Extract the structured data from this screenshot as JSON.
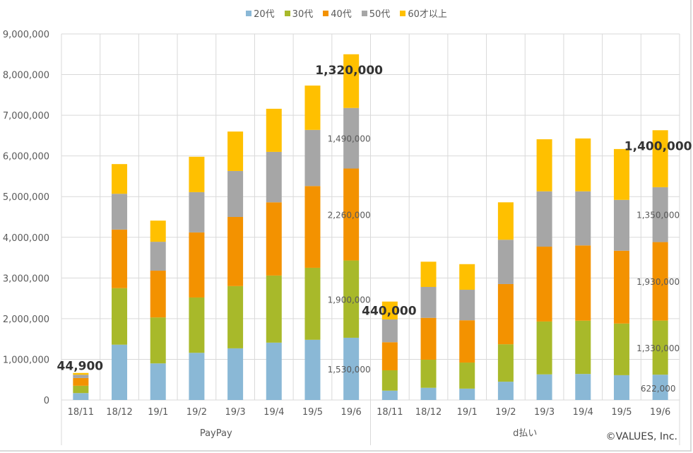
{
  "chart_data": {
    "type": "bar",
    "stacked": true,
    "title": "",
    "xlabel": "",
    "ylabel": "",
    "ylim": [
      0,
      9000000
    ],
    "yticks": [
      0,
      1000000,
      2000000,
      3000000,
      4000000,
      5000000,
      6000000,
      7000000,
      8000000,
      9000000
    ],
    "ytick_labels": [
      "0",
      "1,000,000",
      "2,000,000",
      "3,000,000",
      "4,000,000",
      "5,000,000",
      "6,000,000",
      "7,000,000",
      "8,000,000",
      "9,000,000"
    ],
    "grid": true,
    "legend_position": "top",
    "groups": [
      {
        "name": "PayPay",
        "categories": [
          "18/11",
          "18/12",
          "19/1",
          "19/2",
          "19/3",
          "19/4",
          "19/5",
          "19/6"
        ]
      },
      {
        "name": "d払い",
        "categories": [
          "18/11",
          "18/12",
          "19/1",
          "19/2",
          "19/3",
          "19/4",
          "19/5",
          "19/6"
        ]
      }
    ],
    "series": [
      {
        "name": "20代",
        "color": "#8ab8d6",
        "values": [
          170000,
          1360000,
          900000,
          1160000,
          1270000,
          1410000,
          1480000,
          1530000,
          230000,
          300000,
          280000,
          450000,
          630000,
          640000,
          610000,
          622000
        ]
      },
      {
        "name": "30代",
        "color": "#a8b92a",
        "values": [
          180000,
          1390000,
          1130000,
          1360000,
          1530000,
          1650000,
          1770000,
          1900000,
          500000,
          690000,
          640000,
          920000,
          1300000,
          1310000,
          1270000,
          1330000
        ]
      },
      {
        "name": "40代",
        "color": "#f39200",
        "values": [
          190000,
          1440000,
          1150000,
          1600000,
          1700000,
          1800000,
          2010000,
          2260000,
          690000,
          1030000,
          1040000,
          1480000,
          1840000,
          1850000,
          1790000,
          1930000
        ]
      },
      {
        "name": "50代",
        "color": "#a6a6a6",
        "values": [
          80000,
          880000,
          710000,
          990000,
          1130000,
          1240000,
          1380000,
          1490000,
          560000,
          760000,
          750000,
          1090000,
          1360000,
          1330000,
          1250000,
          1350000
        ]
      },
      {
        "name": "60才以上",
        "color": "#ffc000",
        "values": [
          44900,
          730000,
          520000,
          870000,
          970000,
          1060000,
          1090000,
          1320000,
          440000,
          620000,
          630000,
          920000,
          1280000,
          1300000,
          1250000,
          1400000
        ]
      }
    ],
    "annotations": [
      {
        "category_index": 0,
        "series": "60才以上",
        "text": "44,900",
        "style": "bold"
      },
      {
        "category_index": 7,
        "series": "60才以上",
        "text": "1,320,000",
        "style": "bold"
      },
      {
        "category_index": 7,
        "series": "50代",
        "text": "1,490,000",
        "style": "normal"
      },
      {
        "category_index": 7,
        "series": "40代",
        "text": "2,260,000",
        "style": "normal"
      },
      {
        "category_index": 7,
        "series": "30代",
        "text": "1,900,000",
        "style": "normal"
      },
      {
        "category_index": 7,
        "series": "20代",
        "text": "1,530,000",
        "style": "normal"
      },
      {
        "category_index": 8,
        "series": "60才以上",
        "text": "440,000",
        "style": "bold"
      },
      {
        "category_index": 15,
        "series": "60才以上",
        "text": "1,400,000",
        "style": "bold"
      },
      {
        "category_index": 15,
        "series": "50代",
        "text": "1,350,000",
        "style": "normal"
      },
      {
        "category_index": 15,
        "series": "40代",
        "text": "1,930,000",
        "style": "normal"
      },
      {
        "category_index": 15,
        "series": "30代",
        "text": "1,330,000",
        "style": "normal"
      },
      {
        "category_index": 15,
        "series": "20代",
        "text": "622,000",
        "style": "normal"
      }
    ]
  },
  "legend": {
    "items": [
      {
        "label": "20代",
        "color": "#8ab8d6"
      },
      {
        "label": "30代",
        "color": "#a8b92a"
      },
      {
        "label": "40代",
        "color": "#f39200"
      },
      {
        "label": "50代",
        "color": "#a6a6a6"
      },
      {
        "label": "60才以上",
        "color": "#ffc000"
      }
    ]
  },
  "copyright": "©VALUES, Inc."
}
